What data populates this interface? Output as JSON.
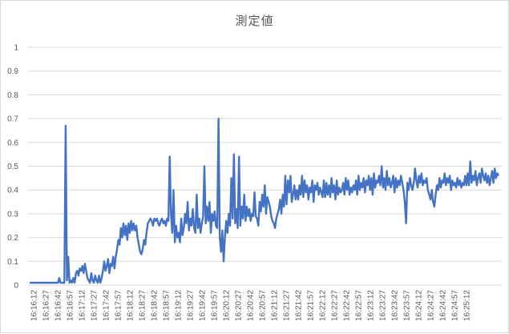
{
  "chart_data": {
    "type": "line",
    "title": "測定値",
    "xlabel": "",
    "ylabel": "",
    "ylim": [
      0,
      1
    ],
    "grid": true,
    "legend": "none",
    "y_ticks": [
      "0",
      "0.1",
      "0.2",
      "0.3",
      "0.4",
      "0.5",
      "0.6",
      "0.7",
      "0.8",
      "0.9",
      "1"
    ],
    "x_tick_labels": [
      "16:16:12",
      "16:16:27",
      "16:16:42",
      "16:16:57",
      "16:17:12",
      "16:17:27",
      "16:17:42",
      "16:17:57",
      "16:18:12",
      "16:18:27",
      "16:18:42",
      "16:18:57",
      "16:19:12",
      "16:19:27",
      "16:19:42",
      "16:19:57",
      "16:20:12",
      "16:20:27",
      "16:20:42",
      "16:20:57",
      "16:21:12",
      "16:21:27",
      "16:21:42",
      "16:21:57",
      "16:22:12",
      "16:22:27",
      "16:22:42",
      "16:22:57",
      "16:23:12",
      "16:23:27",
      "16:23:42",
      "16:23:57",
      "16:24:12",
      "16:24:27",
      "16:24:42",
      "16:24:57",
      "16:25:12"
    ],
    "series": [
      {
        "color": "#4472c4",
        "values": [
          0.01,
          0.01,
          0.01,
          0.01,
          0.01,
          0.01,
          0.01,
          0.01,
          0.01,
          0.01,
          0.01,
          0.01,
          0.01,
          0.01,
          0.01,
          0.01,
          0.01,
          0.01,
          0.01,
          0.01,
          0.01,
          0.01,
          0.01,
          0.03,
          0.01,
          0.01,
          0.01,
          0.01,
          0.67,
          0.02,
          0.12,
          0.01,
          0.02,
          0.01,
          0.03,
          0.01,
          0.05,
          0.06,
          0.04,
          0.07,
          0.06,
          0.08,
          0.05,
          0.09,
          0.06,
          0.03,
          0.02,
          0.01,
          0.05,
          0.02,
          0.01,
          0.04,
          0.02,
          0.01,
          0.04,
          0.01,
          0.03,
          0.06,
          0.1,
          0.06,
          0.08,
          0.11,
          0.05,
          0.09,
          0.08,
          0.12,
          0.07,
          0.12,
          0.15,
          0.19,
          0.17,
          0.24,
          0.2,
          0.26,
          0.21,
          0.25,
          0.19,
          0.26,
          0.22,
          0.27,
          0.23,
          0.26,
          0.23,
          0.25,
          0.2,
          0.17,
          0.14,
          0.13,
          0.15,
          0.19,
          0.17,
          0.22,
          0.26,
          0.27,
          0.28,
          0.27,
          0.25,
          0.28,
          0.27,
          0.28,
          0.26,
          0.25,
          0.27,
          0.28,
          0.26,
          0.27,
          0.25,
          0.28,
          0.27,
          0.54,
          0.3,
          0.22,
          0.4,
          0.18,
          0.25,
          0.2,
          0.22,
          0.18,
          0.28,
          0.21,
          0.24,
          0.3,
          0.26,
          0.35,
          0.23,
          0.28,
          0.25,
          0.32,
          0.24,
          0.22,
          0.38,
          0.24,
          0.28,
          0.22,
          0.26,
          0.29,
          0.5,
          0.26,
          0.33,
          0.27,
          0.35,
          0.22,
          0.3,
          0.27,
          0.31,
          0.25,
          0.24,
          0.7,
          0.2,
          0.14,
          0.23,
          0.1,
          0.2,
          0.27,
          0.22,
          0.3,
          0.25,
          0.45,
          0.28,
          0.55,
          0.26,
          0.32,
          0.24,
          0.54,
          0.25,
          0.33,
          0.28,
          0.38,
          0.27,
          0.33,
          0.29,
          0.32,
          0.27,
          0.3,
          0.29,
          0.39,
          0.29,
          0.28,
          0.25,
          0.35,
          0.31,
          0.38,
          0.33,
          0.42,
          0.3,
          0.37,
          0.35,
          0.33,
          0.29,
          0.27,
          0.26,
          0.24,
          0.28,
          0.3,
          0.32,
          0.36,
          0.3,
          0.38,
          0.33,
          0.46,
          0.34,
          0.44,
          0.39,
          0.46,
          0.35,
          0.38,
          0.42,
          0.36,
          0.4,
          0.36,
          0.42,
          0.38,
          0.46,
          0.37,
          0.44,
          0.39,
          0.42,
          0.36,
          0.41,
          0.39,
          0.44,
          0.35,
          0.42,
          0.4,
          0.43,
          0.38,
          0.41,
          0.39,
          0.37,
          0.44,
          0.37,
          0.43,
          0.38,
          0.42,
          0.37,
          0.45,
          0.39,
          0.42,
          0.36,
          0.44,
          0.38,
          0.41,
          0.39,
          0.4,
          0.43,
          0.38,
          0.45,
          0.4,
          0.44,
          0.38,
          0.41,
          0.39,
          0.42,
          0.4,
          0.44,
          0.38,
          0.46,
          0.4,
          0.43,
          0.41,
          0.45,
          0.39,
          0.44,
          0.42,
          0.46,
          0.4,
          0.45,
          0.38,
          0.47,
          0.41,
          0.44,
          0.43,
          0.46,
          0.42,
          0.5,
          0.41,
          0.45,
          0.4,
          0.48,
          0.42,
          0.45,
          0.41,
          0.43,
          0.46,
          0.39,
          0.45,
          0.41,
          0.44,
          0.42,
          0.46,
          0.43,
          0.4,
          0.35,
          0.26,
          0.43,
          0.4,
          0.45,
          0.42,
          0.4,
          0.43,
          0.49,
          0.44,
          0.41,
          0.46,
          0.43,
          0.47,
          0.42,
          0.44,
          0.43,
          0.45,
          0.4,
          0.38,
          0.36,
          0.4,
          0.35,
          0.33,
          0.38,
          0.42,
          0.4,
          0.45,
          0.41,
          0.44,
          0.43,
          0.47,
          0.42,
          0.45,
          0.43,
          0.46,
          0.4,
          0.44,
          0.42,
          0.43,
          0.41,
          0.45,
          0.42,
          0.44,
          0.41,
          0.43,
          0.42,
          0.46,
          0.42,
          0.47,
          0.42,
          0.52,
          0.43,
          0.46,
          0.44,
          0.48,
          0.42,
          0.45,
          0.47,
          0.43,
          0.49,
          0.46,
          0.44,
          0.47,
          0.43,
          0.46,
          0.42,
          0.45,
          0.48,
          0.43,
          0.49,
          0.45,
          0.47,
          0.46
        ]
      }
    ]
  }
}
